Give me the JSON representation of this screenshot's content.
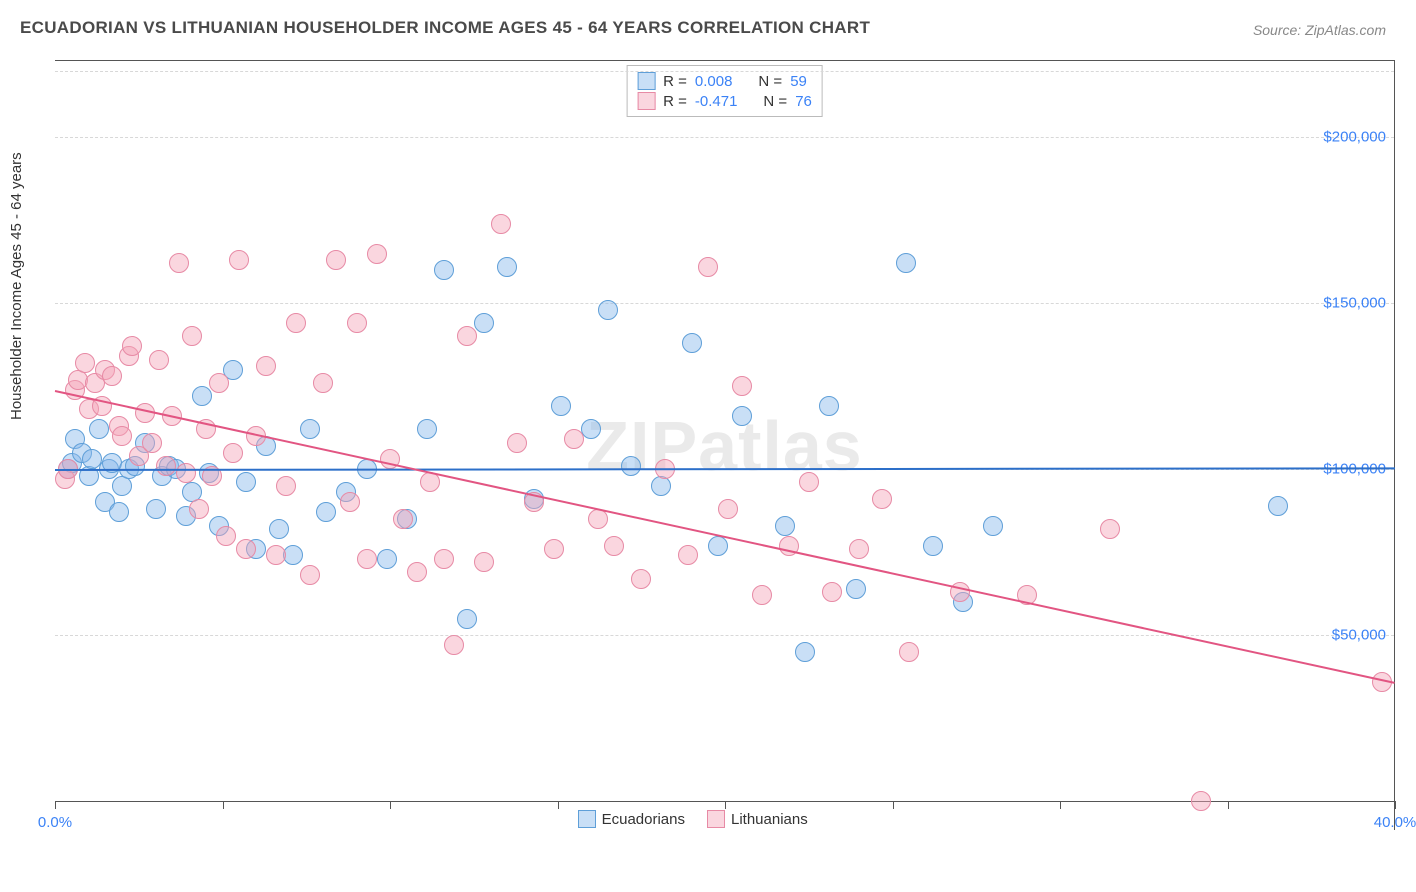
{
  "title": "ECUADORIAN VS LITHUANIAN HOUSEHOLDER INCOME AGES 45 - 64 YEARS CORRELATION CHART",
  "source": "Source: ZipAtlas.com",
  "ylabel": "Householder Income Ages 45 - 64 years",
  "watermark": "ZIPatlas",
  "chart": {
    "type": "scatter",
    "xlim": [
      0,
      40
    ],
    "ylim": [
      0,
      220000
    ],
    "x_ticks": [
      0,
      5,
      10,
      15,
      20,
      25,
      30,
      35,
      40
    ],
    "x_tick_labels": {
      "0": "0.0%",
      "40": "40.0%"
    },
    "y_ticks": [
      50000,
      100000,
      150000,
      200000
    ],
    "y_tick_labels": [
      "$50,000",
      "$100,000",
      "$150,000",
      "$200,000"
    ],
    "grid_color": "#d8d8d8",
    "background_color": "#ffffff",
    "axis_color": "#555555",
    "tick_label_color": "#3b82f6",
    "series": [
      {
        "name": "Ecuadorians",
        "fill": "rgba(135,185,235,0.45)",
        "stroke": "#5f9fd8",
        "trend_color": "#2c6fc9",
        "marker_radius": 10,
        "r": "0.008",
        "n": "59",
        "trend": {
          "x1": 0,
          "y1": 100000,
          "x2": 40,
          "y2": 100500
        },
        "points": [
          [
            0.4,
            100000
          ],
          [
            0.5,
            102000
          ],
          [
            0.6,
            109000
          ],
          [
            0.8,
            105000
          ],
          [
            1.0,
            98000
          ],
          [
            1.1,
            103000
          ],
          [
            1.3,
            112000
          ],
          [
            1.5,
            90000
          ],
          [
            1.6,
            100000
          ],
          [
            1.7,
            102000
          ],
          [
            1.9,
            87000
          ],
          [
            2.0,
            95000
          ],
          [
            2.2,
            100000
          ],
          [
            2.4,
            101000
          ],
          [
            2.7,
            108000
          ],
          [
            3.0,
            88000
          ],
          [
            3.2,
            98000
          ],
          [
            3.4,
            101000
          ],
          [
            3.6,
            100000
          ],
          [
            3.9,
            86000
          ],
          [
            4.1,
            93000
          ],
          [
            4.4,
            122000
          ],
          [
            4.6,
            99000
          ],
          [
            4.9,
            83000
          ],
          [
            5.3,
            130000
          ],
          [
            5.7,
            96000
          ],
          [
            6.0,
            76000
          ],
          [
            6.3,
            107000
          ],
          [
            6.7,
            82000
          ],
          [
            7.1,
            74000
          ],
          [
            7.6,
            112000
          ],
          [
            8.1,
            87000
          ],
          [
            8.7,
            93000
          ],
          [
            9.3,
            100000
          ],
          [
            9.9,
            73000
          ],
          [
            10.5,
            85000
          ],
          [
            11.1,
            112000
          ],
          [
            11.6,
            160000
          ],
          [
            12.3,
            55000
          ],
          [
            12.8,
            144000
          ],
          [
            13.5,
            161000
          ],
          [
            14.3,
            91000
          ],
          [
            15.1,
            119000
          ],
          [
            16.0,
            112000
          ],
          [
            16.5,
            148000
          ],
          [
            17.2,
            101000
          ],
          [
            18.1,
            95000
          ],
          [
            19.0,
            138000
          ],
          [
            19.8,
            77000
          ],
          [
            20.5,
            116000
          ],
          [
            21.8,
            83000
          ],
          [
            22.4,
            45000
          ],
          [
            23.1,
            119000
          ],
          [
            23.9,
            64000
          ],
          [
            25.4,
            162000
          ],
          [
            26.2,
            77000
          ],
          [
            27.1,
            60000
          ],
          [
            28.0,
            83000
          ],
          [
            36.5,
            89000
          ]
        ]
      },
      {
        "name": "Lithuanians",
        "fill": "rgba(245,165,185,0.45)",
        "stroke": "#e78aa5",
        "trend_color": "#e25582",
        "marker_radius": 10,
        "r": "-0.471",
        "n": "76",
        "trend": {
          "x1": 0,
          "y1": 124000,
          "x2": 40,
          "y2": 36000
        },
        "points": [
          [
            0.3,
            97000
          ],
          [
            0.4,
            100000
          ],
          [
            0.6,
            124000
          ],
          [
            0.7,
            127000
          ],
          [
            0.9,
            132000
          ],
          [
            1.0,
            118000
          ],
          [
            1.2,
            126000
          ],
          [
            1.4,
            119000
          ],
          [
            1.5,
            130000
          ],
          [
            1.7,
            128000
          ],
          [
            1.9,
            113000
          ],
          [
            2.0,
            110000
          ],
          [
            2.2,
            134000
          ],
          [
            2.3,
            137000
          ],
          [
            2.5,
            104000
          ],
          [
            2.7,
            117000
          ],
          [
            2.9,
            108000
          ],
          [
            3.1,
            133000
          ],
          [
            3.3,
            101000
          ],
          [
            3.5,
            116000
          ],
          [
            3.7,
            162000
          ],
          [
            3.9,
            99000
          ],
          [
            4.1,
            140000
          ],
          [
            4.3,
            88000
          ],
          [
            4.5,
            112000
          ],
          [
            4.7,
            98000
          ],
          [
            4.9,
            126000
          ],
          [
            5.1,
            80000
          ],
          [
            5.3,
            105000
          ],
          [
            5.5,
            163000
          ],
          [
            5.7,
            76000
          ],
          [
            6.0,
            110000
          ],
          [
            6.3,
            131000
          ],
          [
            6.6,
            74000
          ],
          [
            6.9,
            95000
          ],
          [
            7.2,
            144000
          ],
          [
            7.6,
            68000
          ],
          [
            8.0,
            126000
          ],
          [
            8.4,
            163000
          ],
          [
            8.8,
            90000
          ],
          [
            9.0,
            144000
          ],
          [
            9.3,
            73000
          ],
          [
            9.6,
            165000
          ],
          [
            10.0,
            103000
          ],
          [
            10.4,
            85000
          ],
          [
            10.8,
            69000
          ],
          [
            11.2,
            96000
          ],
          [
            11.6,
            73000
          ],
          [
            11.9,
            47000
          ],
          [
            12.3,
            140000
          ],
          [
            12.8,
            72000
          ],
          [
            13.3,
            174000
          ],
          [
            13.8,
            108000
          ],
          [
            14.3,
            90000
          ],
          [
            14.9,
            76000
          ],
          [
            15.5,
            109000
          ],
          [
            16.2,
            85000
          ],
          [
            16.7,
            77000
          ],
          [
            17.5,
            67000
          ],
          [
            18.2,
            100000
          ],
          [
            18.9,
            74000
          ],
          [
            19.5,
            161000
          ],
          [
            20.1,
            88000
          ],
          [
            20.5,
            125000
          ],
          [
            21.1,
            62000
          ],
          [
            21.9,
            77000
          ],
          [
            22.5,
            96000
          ],
          [
            23.2,
            63000
          ],
          [
            24.0,
            76000
          ],
          [
            24.7,
            91000
          ],
          [
            25.5,
            45000
          ],
          [
            27.0,
            63000
          ],
          [
            29.0,
            62000
          ],
          [
            31.5,
            82000
          ],
          [
            34.2,
            0
          ],
          [
            39.6,
            36000
          ]
        ]
      }
    ]
  },
  "legend_top": [
    {
      "swatch_fill": "rgba(135,185,235,0.45)",
      "swatch_stroke": "#5f9fd8",
      "r_label": "R =",
      "r": "0.008",
      "n_label": "N =",
      "n": "59"
    },
    {
      "swatch_fill": "rgba(245,165,185,0.45)",
      "swatch_stroke": "#e78aa5",
      "r_label": "R =",
      "r": "-0.471",
      "n_label": "N =",
      "n": "76"
    }
  ],
  "legend_bottom": [
    {
      "swatch_fill": "rgba(135,185,235,0.45)",
      "swatch_stroke": "#5f9fd8",
      "label": "Ecuadorians"
    },
    {
      "swatch_fill": "rgba(245,165,185,0.45)",
      "swatch_stroke": "#e78aa5",
      "label": "Lithuanians"
    }
  ]
}
